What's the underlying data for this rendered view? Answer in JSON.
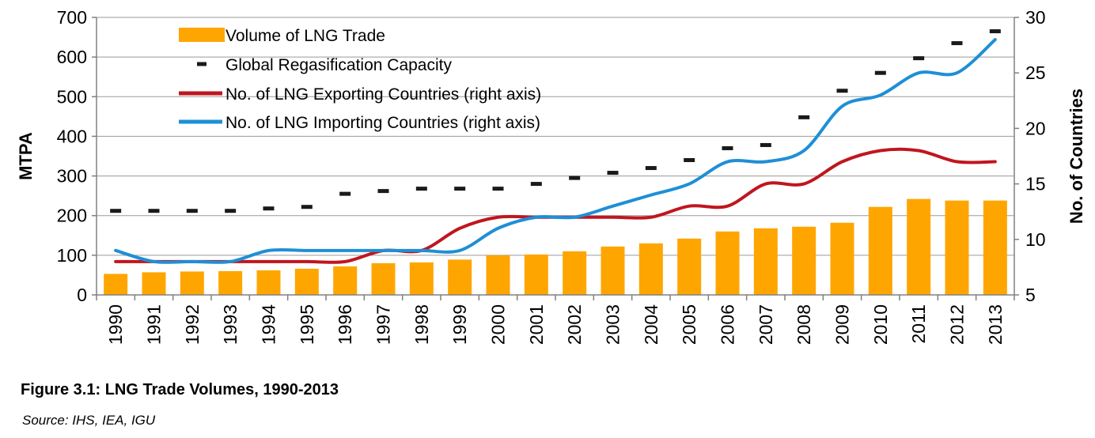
{
  "chart_data": {
    "type": "bar+line",
    "title": "Figure 3.1: LNG Trade Volumes, 1990-2013",
    "source": "Source: IHS, IEA, IGU",
    "categories": [
      "1990",
      "1991",
      "1992",
      "1993",
      "1994",
      "1995",
      "1996",
      "1997",
      "1998",
      "1999",
      "2000",
      "2001",
      "2002",
      "2003",
      "2004",
      "2005",
      "2006",
      "2007",
      "2008",
      "2009",
      "2010",
      "2011",
      "2012",
      "2013"
    ],
    "y_left": {
      "label": "MTPA",
      "lim": [
        0,
        700
      ],
      "ticks": [
        "0",
        "100",
        "200",
        "300",
        "400",
        "500",
        "600",
        "700"
      ]
    },
    "y_right": {
      "label": "No. of Countries",
      "lim": [
        5,
        30
      ],
      "ticks": [
        "5",
        "10",
        "15",
        "20",
        "25",
        "30"
      ]
    },
    "series": [
      {
        "name": "Volume of LNG Trade",
        "kind": "bar",
        "axis": "left",
        "color": "#FFA500",
        "values": [
          53,
          57,
          59,
          60,
          62,
          66,
          72,
          80,
          82,
          89,
          100,
          102,
          110,
          122,
          130,
          142,
          160,
          168,
          172,
          182,
          222,
          242,
          238,
          238
        ]
      },
      {
        "name": "Global Regasification Capacity",
        "kind": "marker",
        "axis": "left",
        "color": "#000000",
        "values": [
          212,
          212,
          212,
          212,
          218,
          222,
          255,
          262,
          268,
          268,
          268,
          280,
          295,
          308,
          320,
          340,
          370,
          378,
          448,
          515,
          560,
          597,
          635,
          665
        ]
      },
      {
        "name": "No. of LNG Exporting Countries (right axis)",
        "kind": "line",
        "axis": "right",
        "color": "#C0161F",
        "values": [
          8,
          8,
          8,
          8,
          8,
          8,
          8,
          9,
          9,
          11,
          12,
          12,
          12,
          12,
          12,
          13,
          13,
          15,
          15,
          17,
          18,
          18,
          17,
          17
        ]
      },
      {
        "name": "No. of LNG Importing Countries (right axis)",
        "kind": "line",
        "axis": "right",
        "color": "#1E8FD6",
        "values": [
          9,
          8,
          8,
          8,
          9,
          9,
          9,
          9,
          9,
          9,
          11,
          12,
          12,
          13,
          14,
          15,
          17,
          17,
          18,
          22,
          23,
          25,
          25,
          28
        ]
      }
    ],
    "legend_position": "top-left",
    "grid": true
  }
}
